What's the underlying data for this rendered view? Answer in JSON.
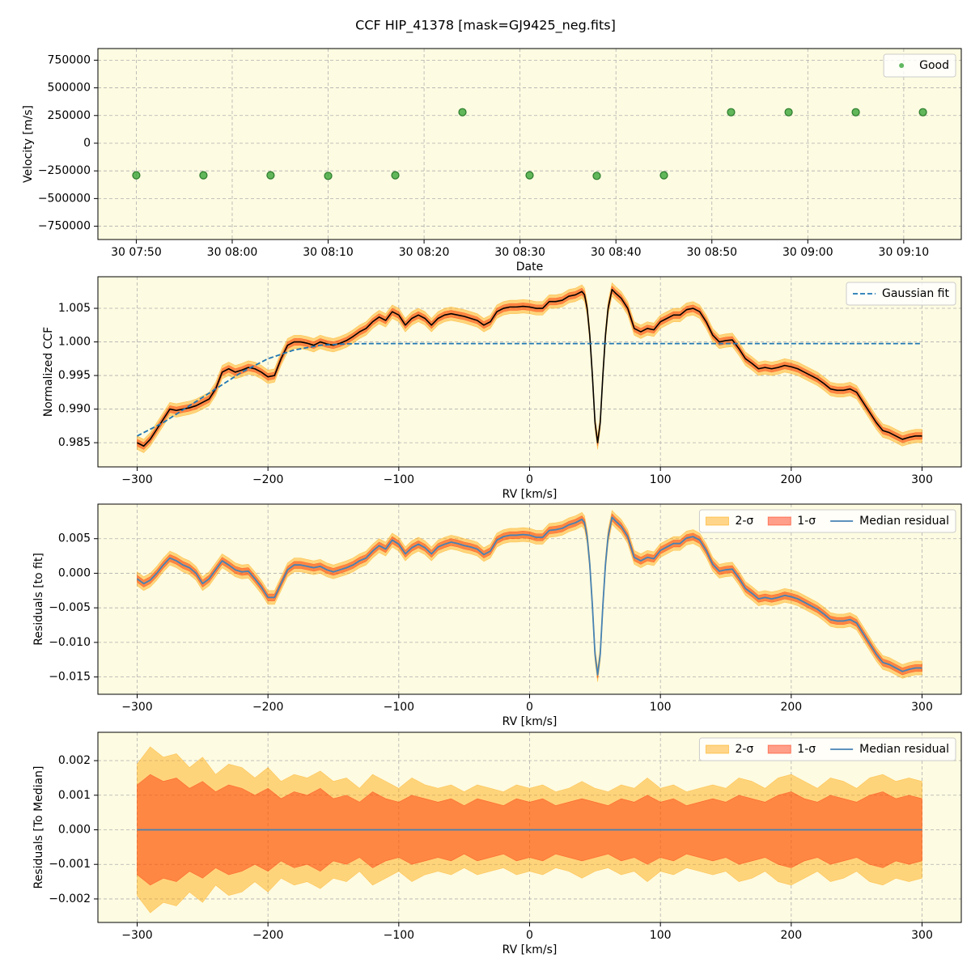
{
  "title": "CCF HIP_41378 [mask=GJ9425_neg.fits]",
  "chart_data": [
    {
      "type": "scatter",
      "xlabel": "Date",
      "ylabel": "Velocity [m/s]",
      "x": [
        "30 07:50",
        "30 07:57",
        "30 08:04",
        "30 08:10",
        "30 08:17",
        "30 08:24",
        "30 08:31",
        "30 08:38",
        "30 08:45",
        "30 08:52",
        "30 08:58",
        "30 09:05",
        "30 09:12"
      ],
      "series": [
        {
          "name": "Good",
          "color": "#2ca02c",
          "values": [
            -290000,
            -290000,
            -290000,
            -295000,
            -290000,
            280000,
            -290000,
            -295000,
            -290000,
            280000,
            280000,
            280000,
            280000
          ]
        }
      ],
      "xlim": [
        "30 07:46",
        "30 09:16"
      ],
      "xticks": [
        "30 07:50",
        "30 08:00",
        "30 08:10",
        "30 08:20",
        "30 08:30",
        "30 08:40",
        "30 08:50",
        "30 09:00",
        "30 09:10"
      ],
      "ylim": [
        -870000,
        855000
      ],
      "yticks": [
        750000,
        500000,
        250000,
        0,
        {
          "value": -250000,
          "label": "−250000"
        },
        {
          "value": -500000,
          "label": "−500000"
        },
        {
          "value": -750000,
          "label": "−750000"
        }
      ],
      "grid": true,
      "legend": "upper right"
    },
    {
      "type": "line",
      "xlabel": "RV [km/s]",
      "ylabel": "Normalized CCF",
      "x": [
        -300,
        -295,
        -290,
        -285,
        -280,
        -275,
        -270,
        -265,
        -260,
        -255,
        -250,
        -245,
        -240,
        -235,
        -230,
        -225,
        -220,
        -215,
        -210,
        -205,
        -200,
        -195,
        -190,
        -185,
        -180,
        -175,
        -170,
        -165,
        -160,
        -155,
        -150,
        -145,
        -140,
        -135,
        -130,
        -125,
        -120,
        -115,
        -110,
        -105,
        -100,
        -95,
        -90,
        -85,
        -80,
        -75,
        -70,
        -65,
        -60,
        -55,
        -50,
        -45,
        -40,
        -35,
        -30,
        -25,
        -20,
        -15,
        -10,
        -5,
        0,
        5,
        10,
        15,
        20,
        25,
        30,
        35,
        40,
        42,
        44,
        46,
        48,
        50,
        52,
        54,
        56,
        58,
        60,
        63,
        66,
        70,
        75,
        80,
        85,
        90,
        95,
        100,
        105,
        110,
        115,
        120,
        125,
        130,
        135,
        140,
        145,
        150,
        155,
        160,
        165,
        170,
        175,
        180,
        185,
        190,
        195,
        200,
        205,
        210,
        215,
        220,
        225,
        230,
        235,
        240,
        245,
        250,
        255,
        260,
        265,
        270,
        275,
        280,
        285,
        290,
        295,
        300
      ],
      "bands": [
        {
          "color": "#ffa500",
          "halfwidth": 0.001
        },
        {
          "color": "#ff2a00",
          "halfwidth": 0.0005
        }
      ],
      "series": [
        {
          "color": "#000000",
          "values": [
            0.985,
            0.9845,
            0.9855,
            0.987,
            0.9885,
            0.99,
            0.9898,
            0.99,
            0.9902,
            0.9905,
            0.991,
            0.9915,
            0.993,
            0.9955,
            0.996,
            0.9955,
            0.9958,
            0.9962,
            0.996,
            0.9955,
            0.9948,
            0.995,
            0.9975,
            0.9995,
            1.0,
            1.0,
            0.9998,
            0.9995,
            1.0,
            0.9997,
            0.9995,
            0.9998,
            1.0002,
            1.0008,
            1.0015,
            1.002,
            1.003,
            1.0037,
            1.0032,
            1.0045,
            1.004,
            1.0025,
            1.0035,
            1.004,
            1.0035,
            1.0025,
            1.0035,
            1.004,
            1.0042,
            1.004,
            1.0038,
            1.0035,
            1.0032,
            1.0025,
            1.003,
            1.0045,
            1.005,
            1.0052,
            1.0052,
            1.0053,
            1.0052,
            1.005,
            1.005,
            1.006,
            1.006,
            1.0062,
            1.0068,
            1.007,
            1.0075,
            1.007,
            1.005,
            1.001,
            0.995,
            0.988,
            0.985,
            0.988,
            0.995,
            1.001,
            1.005,
            1.0078,
            1.0072,
            1.0065,
            1.005,
            1.002,
            1.0015,
            1.002,
            1.0018,
            1.003,
            1.0035,
            1.004,
            1.004,
            1.0048,
            1.005,
            1.0045,
            1.003,
            1.001,
            1.0,
            1.0002,
            1.0003,
            0.999,
            0.9975,
            0.9968,
            0.996,
            0.9962,
            0.996,
            0.9962,
            0.9965,
            0.9963,
            0.996,
            0.9955,
            0.995,
            0.9945,
            0.9938,
            0.993,
            0.9928,
            0.9928,
            0.993,
            0.9925,
            0.991,
            0.9895,
            0.988,
            0.9868,
            0.9865,
            0.986,
            0.9855,
            0.9858,
            0.986,
            0.986
          ]
        },
        {
          "name": "Gaussian fit",
          "color": "#1f77b4",
          "linestyle": "dashed",
          "x": [
            -300,
            -280,
            -260,
            -240,
            -220,
            -200,
            -180,
            -160,
            -140,
            -120,
            300
          ],
          "values": [
            0.986,
            0.988,
            0.9905,
            0.993,
            0.9955,
            0.9975,
            0.9988,
            0.9995,
            0.99972,
            0.99975,
            0.99975
          ]
        }
      ],
      "xlim": [
        -330,
        330
      ],
      "xticks": [
        {
          "value": -300,
          "label": "−300"
        },
        {
          "value": -200,
          "label": "−200"
        },
        {
          "value": -100,
          "label": "−100"
        },
        0,
        100,
        200,
        300
      ],
      "ylim": [
        0.9814,
        1.0097
      ],
      "yticks": [
        0.985,
        {
          "value": 0.99,
          "label": "0.990"
        },
        0.995,
        {
          "value": 1,
          "label": "1.000"
        },
        1.005
      ],
      "grid": true,
      "legend": "upper right"
    },
    {
      "type": "line",
      "xlabel": "RV [km/s]",
      "ylabel": "Residuals [to fit]",
      "x": [
        -300,
        -295,
        -290,
        -285,
        -280,
        -275,
        -270,
        -265,
        -260,
        -255,
        -250,
        -245,
        -240,
        -235,
        -230,
        -225,
        -220,
        -215,
        -210,
        -205,
        -200,
        -195,
        -190,
        -185,
        -180,
        -175,
        -170,
        -165,
        -160,
        -155,
        -150,
        -145,
        -140,
        -135,
        -130,
        -125,
        -120,
        -115,
        -110,
        -105,
        -100,
        -95,
        -90,
        -85,
        -80,
        -75,
        -70,
        -65,
        -60,
        -55,
        -50,
        -45,
        -40,
        -35,
        -30,
        -25,
        -20,
        -15,
        -10,
        -5,
        0,
        5,
        10,
        15,
        20,
        25,
        30,
        35,
        40,
        42,
        44,
        46,
        48,
        50,
        52,
        54,
        56,
        58,
        60,
        63,
        66,
        70,
        75,
        80,
        85,
        90,
        95,
        100,
        105,
        110,
        115,
        120,
        125,
        130,
        135,
        140,
        145,
        150,
        155,
        160,
        165,
        170,
        175,
        180,
        185,
        190,
        195,
        200,
        205,
        210,
        215,
        220,
        225,
        230,
        235,
        240,
        245,
        250,
        255,
        260,
        265,
        270,
        275,
        280,
        285,
        290,
        295,
        300
      ],
      "bands": [
        {
          "name": "2-σ",
          "color": "#ffa500",
          "halfwidth": 0.001
        },
        {
          "name": "1-σ",
          "color": "#ff2a00",
          "halfwidth": 0.0005
        }
      ],
      "series": [
        {
          "name": "Median residual",
          "color": "#4682b4",
          "values": [
            -0.0008,
            -0.0015,
            -0.001,
            0.0,
            0.0012,
            0.0022,
            0.0018,
            0.0012,
            0.0008,
            0.0,
            -0.0015,
            -0.0008,
            0.0005,
            0.0018,
            0.0012,
            0.0005,
            0.0002,
            0.0003,
            -0.0008,
            -0.002,
            -0.0035,
            -0.0035,
            -0.0015,
            0.0005,
            0.0012,
            0.0012,
            0.001,
            0.0008,
            0.001,
            0.0005,
            0.0002,
            0.0005,
            0.0008,
            0.0012,
            0.0018,
            0.0022,
            0.0032,
            0.004,
            0.0035,
            0.0048,
            0.0042,
            0.0028,
            0.0037,
            0.0042,
            0.0037,
            0.0028,
            0.0038,
            0.0042,
            0.0045,
            0.0043,
            0.004,
            0.0038,
            0.0035,
            0.0027,
            0.0032,
            0.0048,
            0.0053,
            0.0055,
            0.0055,
            0.0056,
            0.0055,
            0.0052,
            0.0052,
            0.0062,
            0.0063,
            0.0065,
            0.007,
            0.0073,
            0.0078,
            0.0073,
            0.0053,
            0.0013,
            -0.0047,
            -0.0117,
            -0.0147,
            -0.0117,
            -0.0047,
            0.0013,
            0.0053,
            0.0081,
            0.0075,
            0.0068,
            0.0053,
            0.0023,
            0.0018,
            0.0023,
            0.0021,
            0.0033,
            0.0038,
            0.0043,
            0.0043,
            0.0051,
            0.0053,
            0.0048,
            0.0033,
            0.0013,
            0.0003,
            0.0005,
            0.0006,
            -0.0007,
            -0.0022,
            -0.0029,
            -0.0037,
            -0.0035,
            -0.0037,
            -0.0035,
            -0.0032,
            -0.0034,
            -0.0037,
            -0.0042,
            -0.0047,
            -0.0052,
            -0.0059,
            -0.0067,
            -0.0069,
            -0.0069,
            -0.0067,
            -0.0072,
            -0.0087,
            -0.0102,
            -0.0117,
            -0.0129,
            -0.0132,
            -0.0137,
            -0.0142,
            -0.0139,
            -0.0137,
            -0.0137
          ]
        }
      ],
      "xlim": [
        -330,
        330
      ],
      "xticks": [
        {
          "value": -300,
          "label": "−300"
        },
        {
          "value": -200,
          "label": "−200"
        },
        {
          "value": -100,
          "label": "−100"
        },
        0,
        100,
        200,
        300
      ],
      "ylim": [
        -0.0175,
        0.01
      ],
      "yticks": [
        0.005,
        {
          "value": 0,
          "label": "0.000"
        },
        {
          "value": -0.005,
          "label": "−0.005"
        },
        {
          "value": -0.01,
          "label": "−0.010"
        },
        {
          "value": -0.015,
          "label": "−0.015"
        }
      ],
      "grid": true,
      "legend": "upper right"
    },
    {
      "type": "line",
      "xlabel": "RV [km/s]",
      "ylabel": "Residuals [To Median]",
      "x": [
        -300,
        -290,
        -280,
        -270,
        -260,
        -250,
        -240,
        -230,
        -220,
        -210,
        -200,
        -190,
        -180,
        -170,
        -160,
        -150,
        -140,
        -130,
        -120,
        -110,
        -100,
        -90,
        -80,
        -70,
        -60,
        -50,
        -40,
        -30,
        -20,
        -10,
        0,
        10,
        20,
        30,
        40,
        50,
        60,
        70,
        80,
        90,
        100,
        110,
        120,
        130,
        140,
        150,
        160,
        170,
        180,
        190,
        200,
        210,
        220,
        230,
        240,
        250,
        260,
        270,
        280,
        290,
        300
      ],
      "bands": [
        {
          "name": "2-σ",
          "color": "#ffa500",
          "halfwidths": [
            0.0019,
            0.0024,
            0.0021,
            0.0022,
            0.0018,
            0.0021,
            0.0016,
            0.0019,
            0.0018,
            0.0015,
            0.0018,
            0.0014,
            0.0016,
            0.0015,
            0.0017,
            0.0014,
            0.0015,
            0.0012,
            0.0016,
            0.0014,
            0.0012,
            0.0015,
            0.0013,
            0.0012,
            0.0013,
            0.0011,
            0.0013,
            0.0012,
            0.0011,
            0.0013,
            0.0012,
            0.0013,
            0.0011,
            0.0012,
            0.0014,
            0.0012,
            0.0011,
            0.0013,
            0.0012,
            0.0015,
            0.0012,
            0.0013,
            0.0011,
            0.0012,
            0.0013,
            0.0012,
            0.0015,
            0.0014,
            0.0012,
            0.0015,
            0.0016,
            0.0014,
            0.0012,
            0.0015,
            0.0014,
            0.0012,
            0.0015,
            0.0016,
            0.0014,
            0.0015,
            0.0014
          ]
        },
        {
          "name": "1-σ",
          "color": "#ff2a00",
          "halfwidths": [
            0.0013,
            0.0016,
            0.0014,
            0.0015,
            0.0012,
            0.0014,
            0.0011,
            0.0013,
            0.0012,
            0.001,
            0.0012,
            0.0009,
            0.0011,
            0.001,
            0.0012,
            0.0009,
            0.001,
            0.0008,
            0.0011,
            0.0009,
            0.0008,
            0.001,
            0.0009,
            0.0008,
            0.0009,
            0.0007,
            0.0009,
            0.0008,
            0.0007,
            0.0009,
            0.0008,
            0.0009,
            0.0007,
            0.0008,
            0.0009,
            0.0008,
            0.0007,
            0.0009,
            0.0008,
            0.001,
            0.0008,
            0.0009,
            0.0007,
            0.0008,
            0.0009,
            0.0008,
            0.001,
            0.0009,
            0.0008,
            0.001,
            0.0011,
            0.0009,
            0.0008,
            0.001,
            0.0009,
            0.0008,
            0.001,
            0.0011,
            0.0009,
            0.001,
            0.0009
          ]
        }
      ],
      "series": [
        {
          "name": "Median residual",
          "color": "#4682b4",
          "values": [
            0,
            0,
            0,
            0,
            0,
            0,
            0,
            0,
            0,
            0,
            0,
            0,
            0,
            0,
            0,
            0,
            0,
            0,
            0,
            0,
            0,
            0,
            0,
            0,
            0,
            0,
            0,
            0,
            0,
            0,
            0,
            0,
            0,
            0,
            0,
            0,
            0,
            0,
            0,
            0,
            0,
            0,
            0,
            0,
            0,
            0,
            0,
            0,
            0,
            0,
            0,
            0,
            0,
            0,
            0,
            0,
            0,
            0,
            0,
            0,
            0
          ]
        }
      ],
      "xlim": [
        -330,
        330
      ],
      "xticks": [
        {
          "value": -300,
          "label": "−300"
        },
        {
          "value": -200,
          "label": "−200"
        },
        {
          "value": -100,
          "label": "−100"
        },
        0,
        100,
        200,
        300
      ],
      "ylim": [
        -0.00268,
        0.00282
      ],
      "yticks": [
        0.002,
        0.001,
        {
          "value": 0,
          "label": "0.000"
        },
        {
          "value": -0.001,
          "label": "−0.001"
        },
        {
          "value": -0.002,
          "label": "−0.002"
        }
      ],
      "grid": true,
      "legend": "upper right"
    }
  ]
}
